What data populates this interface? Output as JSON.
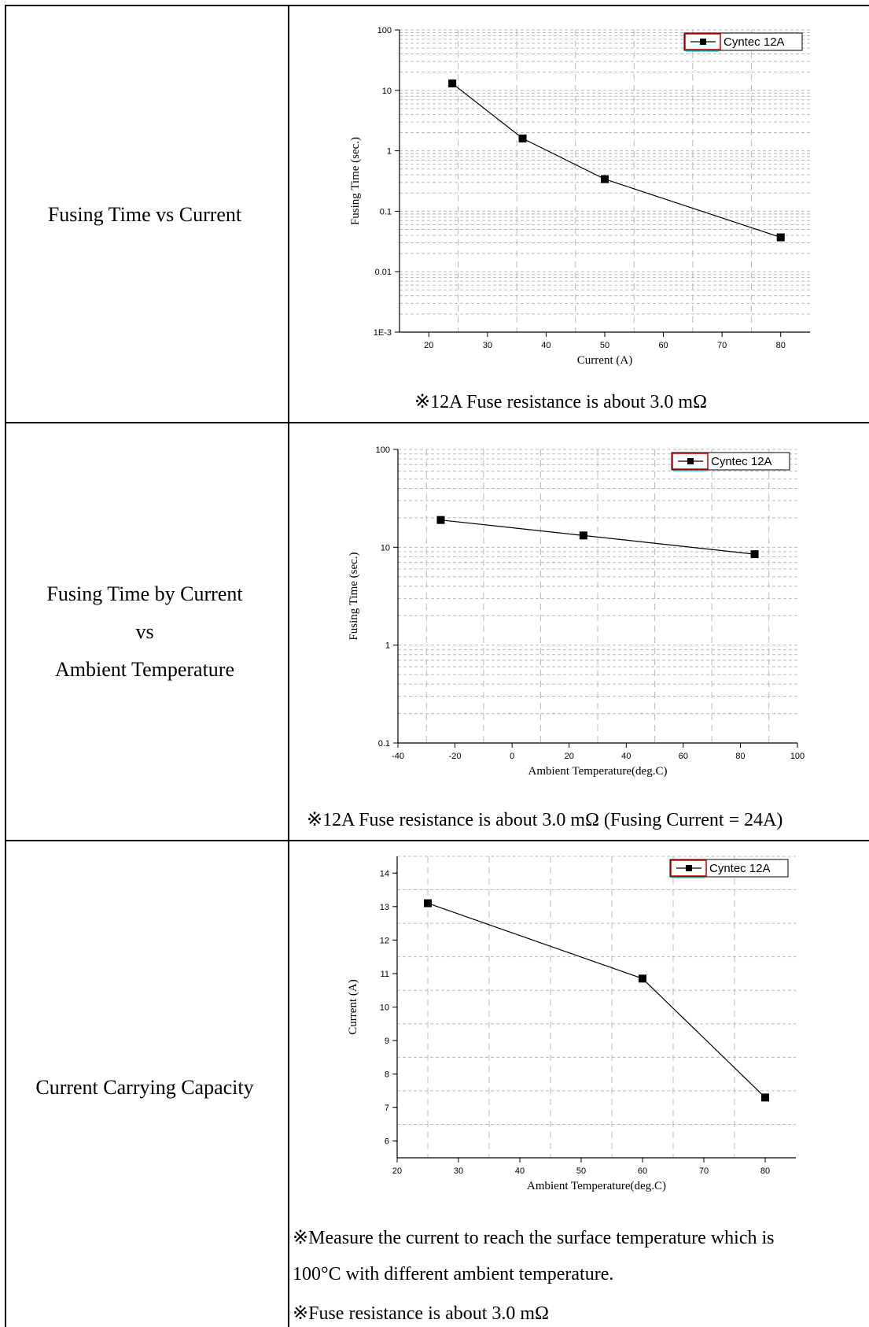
{
  "rows": [
    {
      "label": [
        "Fusing Time vs Current"
      ],
      "notes": [
        "※12A Fuse resistance is about 3.0 mΩ"
      ]
    },
    {
      "label": [
        "Fusing Time by Current",
        "vs",
        "Ambient Temperature"
      ],
      "notes": [
        "※12A Fuse resistance is about 3.0 mΩ (Fusing Current = 24A)"
      ]
    },
    {
      "label": [
        "Current Carrying Capacity"
      ],
      "notes": [
        "※Measure the current to reach the surface temperature which is",
        "100°C with different ambient temperature.",
        "※Fuse resistance is about 3.0 mΩ"
      ]
    }
  ],
  "chart_data": [
    {
      "type": "line",
      "xlabel": "Current (A)",
      "ylabel": "Fusing Time (sec.)",
      "xlim": [
        15,
        85
      ],
      "ylim": [
        0.001,
        100
      ],
      "yscale": "log",
      "xticks": [
        20,
        30,
        40,
        50,
        60,
        70,
        80
      ],
      "yticks": [
        0.001,
        0.01,
        0.1,
        1,
        10,
        100
      ],
      "ytick_labels": [
        "1E-3",
        "0.01",
        "0.1",
        "1",
        "10",
        "100"
      ],
      "grid": true,
      "legend": "top-right",
      "series": [
        {
          "name": "Cyntec 12A",
          "x": [
            24,
            36,
            50,
            80
          ],
          "y": [
            13,
            1.6,
            0.34,
            0.037
          ]
        }
      ]
    },
    {
      "type": "line",
      "xlabel": "Ambient Temperature(deg.C)",
      "ylabel": "Fusing Time (sec.)",
      "xlim": [
        -40,
        100
      ],
      "ylim": [
        0.1,
        100
      ],
      "yscale": "log",
      "xticks": [
        -40,
        -20,
        0,
        20,
        40,
        60,
        80,
        100
      ],
      "yticks": [
        0.1,
        1,
        10,
        100
      ],
      "ytick_labels": [
        "0.1",
        "1",
        "10",
        "100"
      ],
      "grid": true,
      "legend": "top-right",
      "series": [
        {
          "name": "Cyntec 12A",
          "x": [
            -25,
            25,
            85
          ],
          "y": [
            19,
            13.2,
            8.5
          ]
        }
      ]
    },
    {
      "type": "line",
      "xlabel": "Ambient Temperature(deg.C)",
      "ylabel": "Current (A)",
      "xlim": [
        20,
        85
      ],
      "ylim": [
        5.5,
        14.5
      ],
      "yscale": "linear",
      "xticks": [
        20,
        30,
        40,
        50,
        60,
        70,
        80
      ],
      "yticks": [
        6,
        7,
        8,
        9,
        10,
        11,
        12,
        13,
        14
      ],
      "ytick_labels": [
        "6",
        "7",
        "8",
        "9",
        "10",
        "11",
        "12",
        "13",
        "14"
      ],
      "grid": true,
      "legend": "top-right",
      "series": [
        {
          "name": "Cyntec 12A",
          "x": [
            25,
            60,
            80
          ],
          "y": [
            13.1,
            10.85,
            7.3
          ]
        }
      ]
    }
  ]
}
